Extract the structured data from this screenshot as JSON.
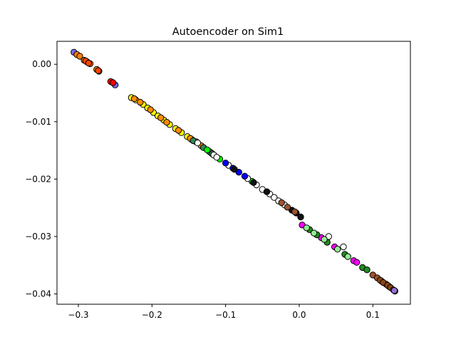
{
  "chart_data": {
    "type": "scatter",
    "title": "Autoencoder on Sim1",
    "xlabel": "",
    "ylabel": "",
    "xlim": [
      -0.329,
      0.151
    ],
    "ylim": [
      -0.0418,
      0.004
    ],
    "xticks": [
      -0.3,
      -0.2,
      -0.1,
      0.0,
      0.1
    ],
    "xtick_labels": [
      "−0.3",
      "−0.2",
      "−0.1",
      "0.0",
      "0.1"
    ],
    "yticks": [
      0.0,
      -0.01,
      -0.02,
      -0.03,
      -0.04
    ],
    "ytick_labels": [
      "0.00",
      "−0.01",
      "−0.02",
      "−0.03",
      "−0.04"
    ],
    "grid": false,
    "marker_edge_color": "#000000",
    "clusters": [
      {
        "color": "#7b68ee",
        "x": [
          -0.306,
          -0.25
        ],
        "y": [
          0.0021,
          -0.0036
        ]
      },
      {
        "color": "#ff7f0e",
        "x": [
          -0.302,
          -0.298,
          -0.292,
          -0.288,
          -0.284,
          -0.275,
          -0.272
        ],
        "y": [
          0.0017,
          0.0014,
          0.0007,
          0.0004,
          0.0001,
          -0.0009,
          -0.0012
        ]
      },
      {
        "color": "#ff4500",
        "x": [
          -0.29,
          -0.286,
          -0.273
        ],
        "y": [
          0.0006,
          0.0002,
          -0.0011
        ]
      },
      {
        "color": "#ff0000",
        "x": [
          -0.256,
          -0.253
        ],
        "y": [
          -0.003,
          -0.0032
        ]
      },
      {
        "color": "#ffff00",
        "x": [
          -0.228,
          -0.222,
          -0.212,
          -0.206,
          -0.198,
          -0.192,
          -0.184,
          -0.176,
          -0.168,
          -0.16,
          -0.152,
          -0.146
        ],
        "y": [
          -0.0058,
          -0.0062,
          -0.007,
          -0.0076,
          -0.0084,
          -0.009,
          -0.0097,
          -0.0105,
          -0.0112,
          -0.0119,
          -0.0126,
          -0.0131
        ]
      },
      {
        "color": "#ff8c00",
        "x": [
          -0.224,
          -0.216,
          -0.202,
          -0.188,
          -0.18,
          -0.164,
          -0.148,
          -0.14,
          -0.133,
          -0.12
        ],
        "y": [
          -0.006,
          -0.0066,
          -0.0079,
          -0.0093,
          -0.0101,
          -0.0115,
          -0.0129,
          -0.0135,
          -0.0142,
          -0.0154
        ]
      },
      {
        "color": "#2e8b57",
        "x": [
          -0.144,
          -0.13,
          -0.122,
          -0.118
        ],
        "y": [
          -0.0133,
          -0.0145,
          -0.0152,
          -0.0156
        ]
      },
      {
        "color": "#00ff00",
        "x": [
          -0.125,
          -0.108,
          -0.064
        ],
        "y": [
          -0.0149,
          -0.0165,
          -0.0204
        ]
      },
      {
        "color": "#ffffff",
        "x": [
          -0.138,
          -0.116,
          -0.112,
          -0.096,
          -0.07,
          -0.058,
          -0.05,
          -0.04,
          -0.034,
          -0.028,
          -0.02,
          0.04,
          0.06
        ],
        "y": [
          -0.0137,
          -0.0158,
          -0.0162,
          -0.0176,
          -0.0199,
          -0.021,
          -0.0218,
          -0.0226,
          -0.0232,
          -0.0238,
          -0.0245,
          -0.03,
          -0.0318
        ]
      },
      {
        "color": "#0000ff",
        "x": [
          -0.1,
          -0.09,
          -0.082,
          -0.074
        ],
        "y": [
          -0.0172,
          -0.0181,
          -0.0188,
          -0.0195
        ]
      },
      {
        "color": "#111111",
        "x": [
          -0.088,
          -0.062,
          -0.044,
          -0.01,
          -0.004,
          0.002
        ],
        "y": [
          -0.0183,
          -0.0206,
          -0.0222,
          -0.0254,
          -0.0259,
          -0.0266
        ]
      },
      {
        "color": "#a0522d",
        "x": [
          -0.024,
          -0.016,
          -0.006,
          0.1,
          0.106,
          0.112,
          0.118,
          0.122
        ],
        "y": [
          -0.0241,
          -0.0249,
          -0.0257,
          -0.0367,
          -0.0372,
          -0.0378,
          -0.0383,
          -0.0387
        ]
      },
      {
        "color": "#ff00ff",
        "x": [
          0.004,
          0.03,
          0.048,
          0.074,
          0.078
        ],
        "y": [
          -0.028,
          -0.0302,
          -0.0318,
          -0.0342,
          -0.0345
        ]
      },
      {
        "color": "#228b22",
        "x": [
          0.014,
          0.024,
          0.038,
          0.062,
          0.086,
          0.092
        ],
        "y": [
          -0.0288,
          -0.0297,
          -0.031,
          -0.0331,
          -0.0354,
          -0.0358
        ]
      },
      {
        "color": "#90ee90",
        "x": [
          0.01,
          0.02,
          0.034,
          0.052,
          0.066
        ],
        "y": [
          -0.0285,
          -0.0294,
          -0.0305,
          -0.0322,
          -0.0335
        ]
      },
      {
        "color": "#8b4513",
        "x": [
          0.11,
          0.114,
          0.12,
          0.124,
          0.128,
          0.13
        ],
        "y": [
          -0.0376,
          -0.038,
          -0.0385,
          -0.0389,
          -0.0393,
          -0.0395
        ]
      },
      {
        "color": "#9370db",
        "x": [
          0.129
        ],
        "y": [
          -0.0394
        ]
      }
    ]
  }
}
